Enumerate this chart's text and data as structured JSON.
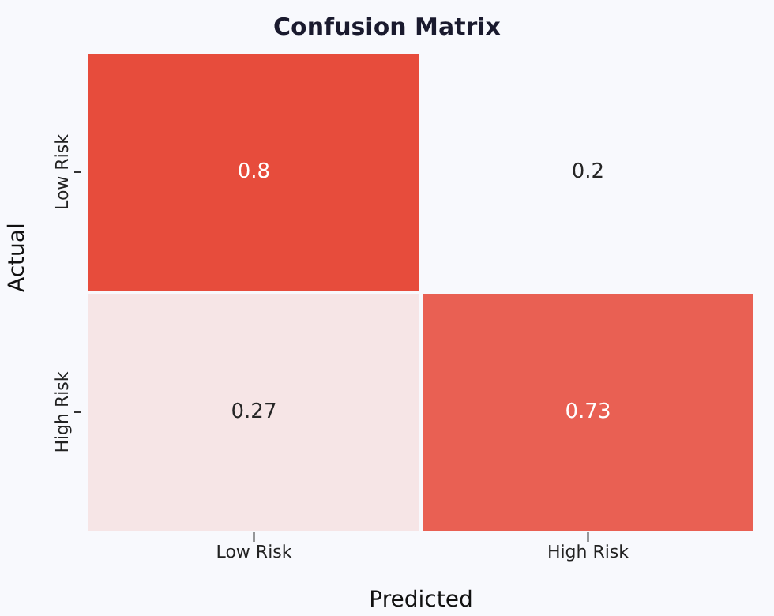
{
  "chart_data": {
    "type": "heatmap",
    "title": "Confusion Matrix",
    "xlabel": "Predicted",
    "ylabel": "Actual",
    "categories": [
      "Low Risk",
      "High Risk"
    ],
    "y_categories": [
      "Low Risk",
      "High Risk"
    ],
    "cells": [
      [
        0.8,
        0.2
      ],
      [
        0.27,
        0.73
      ]
    ],
    "colors": [
      "#f8f9fd",
      "#e74c3c"
    ],
    "data_labels": true
  }
}
